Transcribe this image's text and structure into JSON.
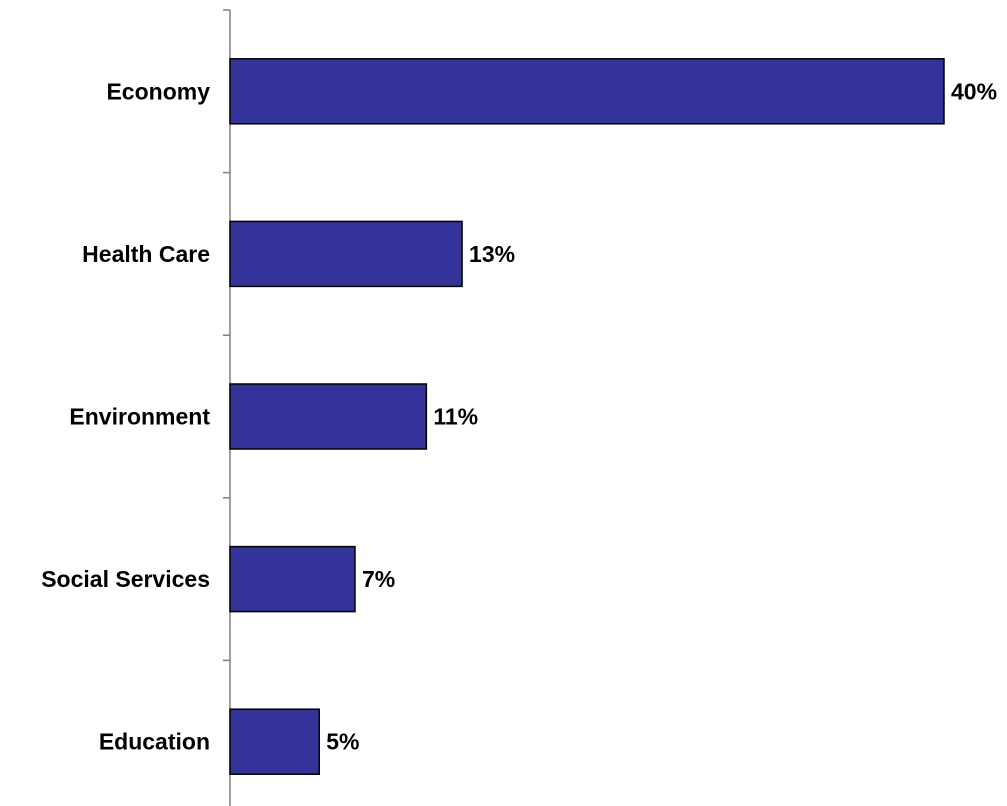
{
  "chart_data": {
    "type": "bar",
    "orientation": "horizontal",
    "categories": [
      "Economy",
      "Health Care",
      "Environment",
      "Social Services",
      "Education"
    ],
    "values": [
      40,
      13,
      11,
      7,
      5
    ],
    "value_labels": [
      "40%",
      "13%",
      "11%",
      "7%",
      "5%"
    ],
    "unit": "%",
    "xlim": [
      0,
      40
    ],
    "grid": false,
    "legend": "none",
    "colors": {
      "bar_fill": "#333399",
      "bar_stroke": "#000000",
      "axis": "#808080"
    }
  }
}
